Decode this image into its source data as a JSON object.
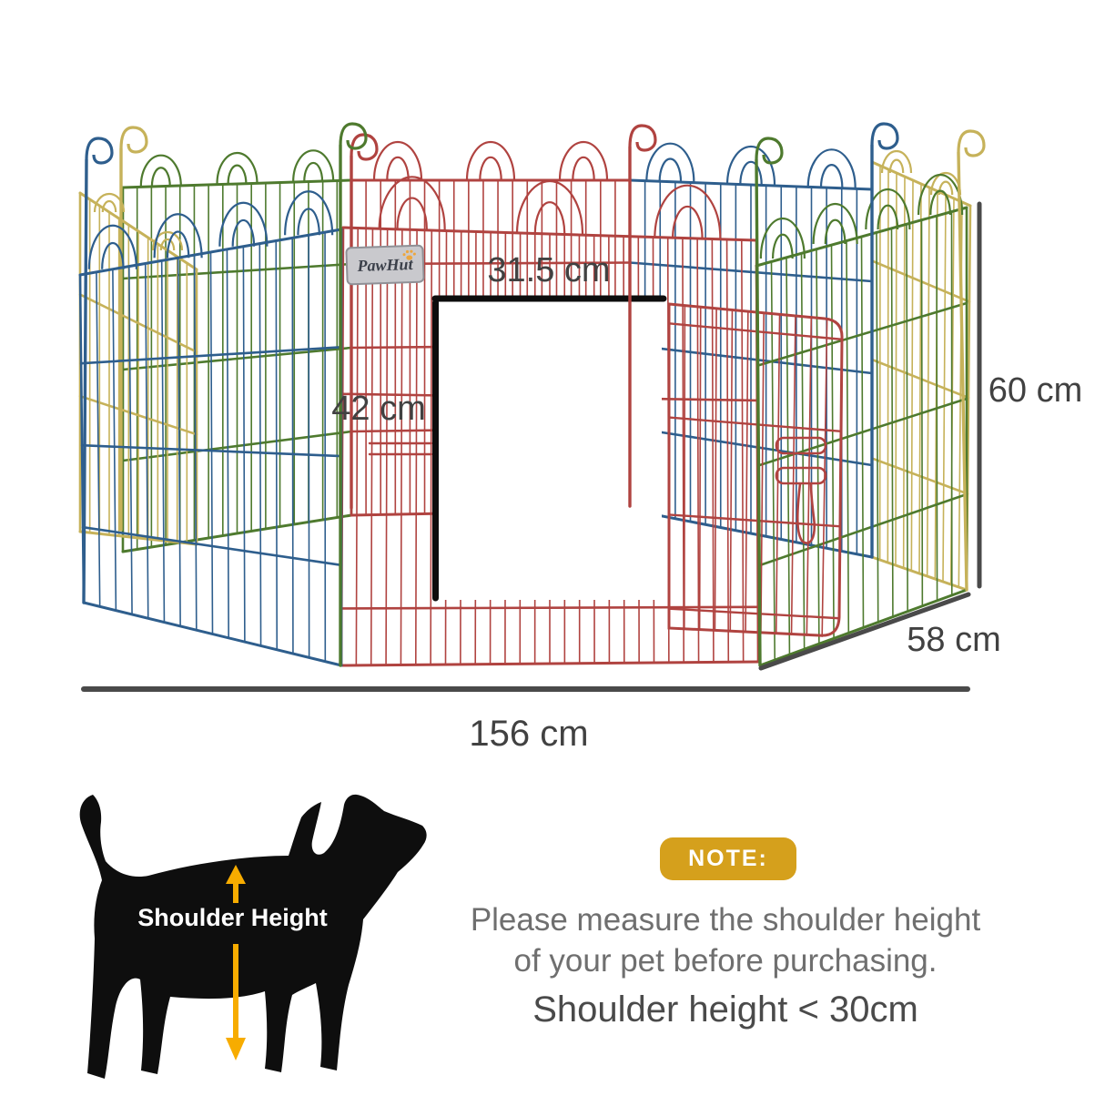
{
  "title": "Pet playpen dimension diagram",
  "logo": {
    "brand": "PawHut"
  },
  "dimensions": {
    "door_width": "31.5 cm",
    "door_height": "42 cm",
    "panel_height": "60 cm",
    "panel_width": "58 cm",
    "overall_width": "156 cm"
  },
  "dog_diagram": {
    "label": "Shoulder Height"
  },
  "note": {
    "badge": "NOTE:",
    "line1": "Please measure the shoulder height",
    "line2": "of your pet before purchasing.",
    "emphasis": "Shoulder height < 30cm"
  },
  "colors": {
    "panel_blue": "#2e5e8d",
    "panel_green": "#4e7a2e",
    "panel_red": "#b04340",
    "panel_yellow": "#c6b25a",
    "dimension_line": "#4a4a4a",
    "dimension_text": "#414141",
    "door_marker": "#0d0d0d",
    "badge_gold": "#d5a01c",
    "arrow_yellow": "#f7ac00",
    "logo_plate": "#c9c9cd",
    "logo_text": "#3a3f49",
    "logo_paw": "#eda63c",
    "note_text": "#6f6f6f",
    "note_emphasis": "#4a4a4a",
    "dog_black": "#0e0e0e"
  }
}
